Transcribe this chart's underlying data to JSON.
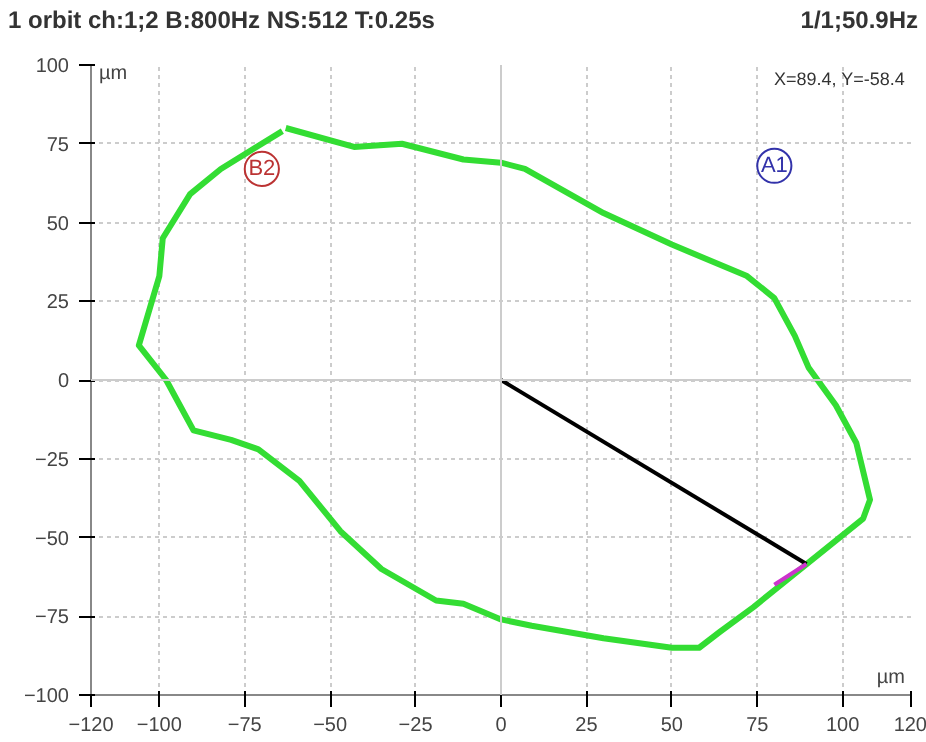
{
  "chart_data": {
    "type": "line",
    "title": "1 orbit ch:1;2 B:800Hz NS:512 T:0.25s",
    "subtitle": "1/1;50.9Hz",
    "xlabel": "µm",
    "ylabel": "µm",
    "series": [
      {
        "color": "#33dd33",
        "x": [
          -63,
          -43,
          -29,
          -11,
          0,
          7,
          30,
          50,
          72,
          80,
          86,
          90,
          98,
          104,
          108,
          106,
          90,
          82,
          74,
          64,
          58,
          50,
          30,
          9,
          0,
          -11,
          -19,
          -35,
          -47,
          -59,
          -71,
          -79,
          -90,
          -94,
          -98,
          -106,
          -100,
          -99,
          -91,
          -82,
          -64
        ],
        "values": [
          80,
          74,
          75,
          70,
          69,
          67,
          53,
          43,
          33,
          26,
          14,
          4,
          -8,
          -20,
          -38,
          -44,
          -58,
          -65,
          -72,
          -80,
          -85,
          -85,
          -82,
          -78,
          -76,
          -71,
          -70,
          -60,
          -48,
          -32,
          -22,
          -19,
          -16,
          -8,
          0,
          11,
          33,
          45,
          59,
          67,
          79
        ]
      },
      {
        "color": "#000000",
        "x": [
          0,
          89.4
        ],
        "values": [
          0,
          -58.4
        ]
      },
      {
        "color": "#cc33cc",
        "x": [
          89.4,
          80
        ],
        "values": [
          -58.4,
          -65
        ]
      }
    ],
    "annotations": [
      "X=89.4, Y=-58.4",
      {
        "text": "A1",
        "x": 80,
        "y": 68
      },
      {
        "text": "B2",
        "x": -70,
        "y": 67
      }
    ],
    "xlim": [
      -120,
      120
    ],
    "ylim": [
      -100,
      100
    ],
    "xticks": [
      -120,
      -100,
      -75,
      -50,
      -25,
      0,
      25,
      50,
      75,
      100,
      120
    ],
    "yticks": [
      -100,
      -75,
      -50,
      -25,
      0,
      25,
      50,
      75,
      100
    ],
    "grid": true,
    "marker": "none",
    "line_style": "solid"
  }
}
